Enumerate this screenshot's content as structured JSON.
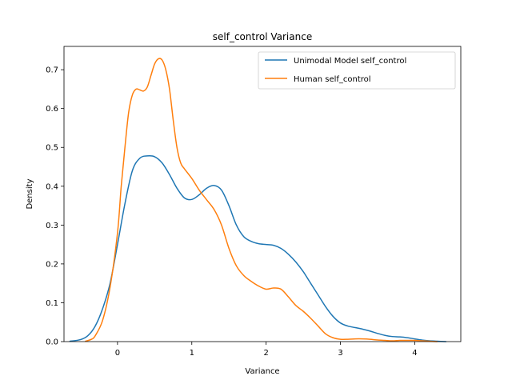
{
  "chart_data": {
    "type": "line",
    "title": "self_control Variance",
    "xlabel": "Variance",
    "ylabel": "Density",
    "xlim": [
      -0.72,
      4.62
    ],
    "ylim": [
      0.0,
      0.76
    ],
    "xticks": [
      0,
      1,
      2,
      3,
      4
    ],
    "yticks": [
      0.0,
      0.1,
      0.2,
      0.3,
      0.4,
      0.5,
      0.6,
      0.7
    ],
    "xtick_labels": [
      "0",
      "1",
      "2",
      "3",
      "4"
    ],
    "ytick_labels": [
      "0.0",
      "0.1",
      "0.2",
      "0.3",
      "0.4",
      "0.5",
      "0.6",
      "0.7"
    ],
    "grid": false,
    "legend_position": "upper right",
    "series": [
      {
        "name": "Unimodal Model self_control",
        "color": "#1f77b4",
        "points": [
          [
            -0.64,
            0.001
          ],
          [
            -0.5,
            0.005
          ],
          [
            -0.4,
            0.015
          ],
          [
            -0.3,
            0.04
          ],
          [
            -0.2,
            0.085
          ],
          [
            -0.1,
            0.15
          ],
          [
            0.0,
            0.25
          ],
          [
            0.1,
            0.355
          ],
          [
            0.2,
            0.44
          ],
          [
            0.3,
            0.472
          ],
          [
            0.4,
            0.478
          ],
          [
            0.5,
            0.476
          ],
          [
            0.6,
            0.46
          ],
          [
            0.7,
            0.43
          ],
          [
            0.8,
            0.395
          ],
          [
            0.9,
            0.37
          ],
          [
            1.0,
            0.366
          ],
          [
            1.1,
            0.378
          ],
          [
            1.2,
            0.395
          ],
          [
            1.3,
            0.402
          ],
          [
            1.4,
            0.39
          ],
          [
            1.5,
            0.35
          ],
          [
            1.6,
            0.3
          ],
          [
            1.7,
            0.27
          ],
          [
            1.8,
            0.258
          ],
          [
            1.9,
            0.252
          ],
          [
            2.0,
            0.25
          ],
          [
            2.1,
            0.248
          ],
          [
            2.2,
            0.24
          ],
          [
            2.3,
            0.225
          ],
          [
            2.4,
            0.205
          ],
          [
            2.5,
            0.18
          ],
          [
            2.6,
            0.15
          ],
          [
            2.7,
            0.12
          ],
          [
            2.8,
            0.09
          ],
          [
            2.9,
            0.065
          ],
          [
            3.0,
            0.048
          ],
          [
            3.1,
            0.04
          ],
          [
            3.2,
            0.036
          ],
          [
            3.3,
            0.032
          ],
          [
            3.4,
            0.027
          ],
          [
            3.5,
            0.021
          ],
          [
            3.6,
            0.016
          ],
          [
            3.7,
            0.013
          ],
          [
            3.8,
            0.012
          ],
          [
            3.9,
            0.01
          ],
          [
            4.0,
            0.007
          ],
          [
            4.1,
            0.004
          ],
          [
            4.2,
            0.002
          ],
          [
            4.3,
            0.001
          ],
          [
            4.42,
            0.0
          ]
        ]
      },
      {
        "name": "Human self_control",
        "color": "#ff7f0e",
        "points": [
          [
            -0.43,
            0.001
          ],
          [
            -0.35,
            0.006
          ],
          [
            -0.3,
            0.015
          ],
          [
            -0.2,
            0.055
          ],
          [
            -0.1,
            0.14
          ],
          [
            0.0,
            0.28
          ],
          [
            0.05,
            0.4
          ],
          [
            0.1,
            0.5
          ],
          [
            0.15,
            0.59
          ],
          [
            0.2,
            0.635
          ],
          [
            0.25,
            0.65
          ],
          [
            0.3,
            0.648
          ],
          [
            0.35,
            0.645
          ],
          [
            0.4,
            0.655
          ],
          [
            0.45,
            0.685
          ],
          [
            0.5,
            0.715
          ],
          [
            0.55,
            0.728
          ],
          [
            0.6,
            0.725
          ],
          [
            0.65,
            0.7
          ],
          [
            0.7,
            0.65
          ],
          [
            0.75,
            0.57
          ],
          [
            0.8,
            0.5
          ],
          [
            0.85,
            0.46
          ],
          [
            0.9,
            0.445
          ],
          [
            1.0,
            0.42
          ],
          [
            1.1,
            0.39
          ],
          [
            1.2,
            0.365
          ],
          [
            1.3,
            0.34
          ],
          [
            1.4,
            0.3
          ],
          [
            1.5,
            0.24
          ],
          [
            1.6,
            0.195
          ],
          [
            1.7,
            0.17
          ],
          [
            1.8,
            0.155
          ],
          [
            1.9,
            0.143
          ],
          [
            2.0,
            0.135
          ],
          [
            2.1,
            0.138
          ],
          [
            2.2,
            0.135
          ],
          [
            2.3,
            0.115
          ],
          [
            2.4,
            0.093
          ],
          [
            2.5,
            0.078
          ],
          [
            2.6,
            0.06
          ],
          [
            2.7,
            0.04
          ],
          [
            2.8,
            0.02
          ],
          [
            2.9,
            0.01
          ],
          [
            3.0,
            0.006
          ],
          [
            3.1,
            0.006
          ],
          [
            3.2,
            0.007
          ],
          [
            3.3,
            0.007
          ],
          [
            3.4,
            0.006
          ],
          [
            3.5,
            0.004
          ],
          [
            3.6,
            0.003
          ],
          [
            3.7,
            0.002
          ],
          [
            3.8,
            0.003
          ],
          [
            3.9,
            0.003
          ],
          [
            4.0,
            0.003
          ],
          [
            4.1,
            0.002
          ],
          [
            4.2,
            0.001
          ],
          [
            4.3,
            0.0
          ]
        ]
      }
    ]
  }
}
